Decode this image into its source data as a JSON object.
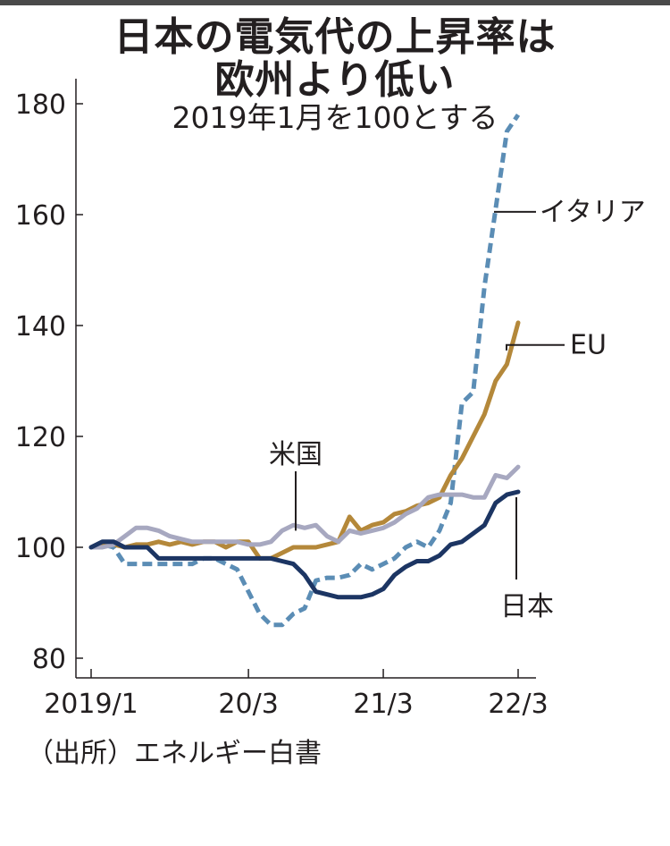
{
  "title_line1": "日本の電気代の上昇率は",
  "title_line2": "欧州より低い",
  "subtitle": "2019年1月を100とする",
  "source": "（出所）エネルギー白書",
  "chart_data": {
    "type": "line",
    "title": "日本の電気代の上昇率は欧州より低い",
    "subtitle": "2019年1月を100とする",
    "xlabel": "",
    "ylabel": "",
    "ylim": [
      80,
      180
    ],
    "yticks": [
      80,
      100,
      120,
      140,
      160,
      180
    ],
    "x_range": [
      0,
      38
    ],
    "xticks": [
      {
        "x": 0,
        "label": "2019/1"
      },
      {
        "x": 14,
        "label": "20/3"
      },
      {
        "x": 26,
        "label": "21/3"
      },
      {
        "x": 38,
        "label": "22/3"
      }
    ],
    "series": [
      {
        "name": "イタリア",
        "color": "#5b8db5",
        "dash": true,
        "x": [
          0,
          1,
          2,
          3,
          4,
          5,
          6,
          7,
          8,
          9,
          10,
          11,
          12,
          13,
          14,
          15,
          16,
          17,
          18,
          19,
          20,
          21,
          22,
          23,
          24,
          25,
          26,
          27,
          28,
          29,
          30,
          31,
          32,
          33,
          34,
          35,
          36,
          37,
          38
        ],
        "values": [
          100,
          100.5,
          100,
          97,
          97,
          97,
          97,
          97,
          97,
          97,
          98,
          98,
          97,
          96,
          92,
          88,
          86,
          86,
          88,
          89,
          94,
          94.5,
          94.5,
          95,
          97,
          96,
          97,
          98,
          100,
          101,
          100,
          103,
          108,
          126,
          128,
          147,
          161,
          175,
          178
        ]
      },
      {
        "name": "EU",
        "color": "#b4883a",
        "x": [
          0,
          1,
          2,
          3,
          4,
          5,
          6,
          7,
          8,
          9,
          10,
          11,
          12,
          13,
          14,
          15,
          16,
          17,
          18,
          19,
          20,
          21,
          22,
          23,
          24,
          25,
          26,
          27,
          28,
          29,
          30,
          31,
          32,
          33,
          34,
          35,
          36,
          37,
          38
        ],
        "values": [
          100,
          100.5,
          100.5,
          100,
          100.5,
          100.5,
          101,
          100.5,
          101,
          100.5,
          101,
          101,
          100,
          101,
          101,
          98,
          98,
          99,
          100,
          100,
          100,
          100.5,
          101,
          105.5,
          103,
          104,
          104.5,
          106,
          106.5,
          107.5,
          108,
          109,
          113,
          116,
          120,
          124,
          130,
          133,
          140.5
        ]
      },
      {
        "name": "米国",
        "color": "#a7a8c0",
        "x": [
          0,
          1,
          2,
          3,
          4,
          5,
          6,
          7,
          8,
          9,
          10,
          11,
          12,
          13,
          14,
          15,
          16,
          17,
          18,
          19,
          20,
          21,
          22,
          23,
          24,
          25,
          26,
          27,
          28,
          29,
          30,
          31,
          32,
          33,
          34,
          35,
          36,
          37,
          38
        ],
        "values": [
          100,
          100,
          100.5,
          102,
          103.5,
          103.5,
          103,
          102,
          101.5,
          101,
          101,
          101,
          101,
          101,
          100.5,
          100.5,
          101,
          103,
          104,
          103.5,
          104,
          102,
          101,
          103,
          102.5,
          103,
          103.5,
          104.5,
          106,
          107,
          109,
          109.5,
          109.5,
          109.5,
          109,
          109,
          113,
          112.5,
          114.5
        ]
      },
      {
        "name": "日本",
        "color": "#1c3563",
        "x": [
          0,
          1,
          2,
          3,
          4,
          5,
          6,
          7,
          8,
          9,
          10,
          11,
          12,
          13,
          14,
          15,
          16,
          17,
          18,
          19,
          20,
          21,
          22,
          23,
          24,
          25,
          26,
          27,
          28,
          29,
          30,
          31,
          32,
          33,
          34,
          35,
          36,
          37,
          38
        ],
        "values": [
          100,
          101,
          101,
          100,
          100,
          100,
          98,
          98,
          98,
          98,
          98,
          98,
          98,
          98,
          98,
          98,
          98,
          97.5,
          97,
          95,
          92,
          91.5,
          91,
          91,
          91,
          91.5,
          92.5,
          95,
          96.5,
          97.5,
          97.5,
          98.5,
          100.5,
          101,
          102.5,
          104,
          108,
          109.5,
          110
        ]
      }
    ],
    "annotations": [
      "イタリア",
      "EU",
      "米国",
      "日本"
    ]
  }
}
